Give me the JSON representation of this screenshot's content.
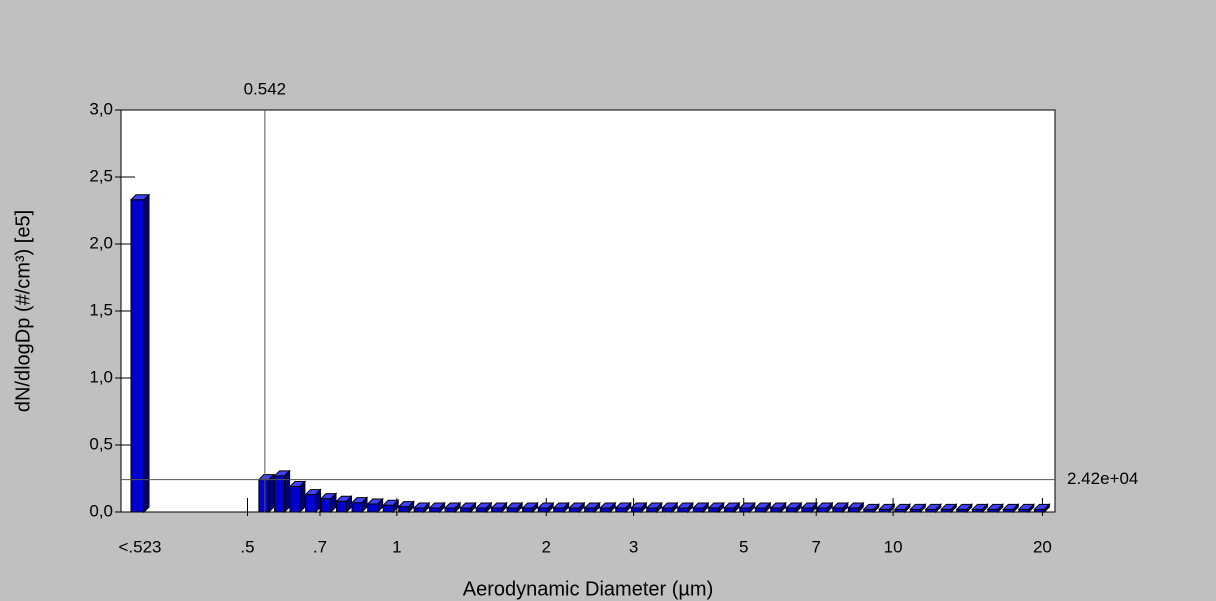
{
  "chart_data": {
    "type": "bar",
    "y_label": "dN/dlogDp (#/cm³) [e5]",
    "x_label": "Aerodynamic Diameter (µm)",
    "x_scale": "log",
    "color": "#0000d0",
    "xlim": [
      0.278,
      21.2
    ],
    "ylim": [
      0,
      3
    ],
    "yticks": [
      {
        "value": 0,
        "label": "0,0"
      },
      {
        "value": 0.5,
        "label": "0,5"
      },
      {
        "value": 1,
        "label": "1,0"
      },
      {
        "value": 1.5,
        "label": "1,5"
      },
      {
        "value": 2,
        "label": "2,0"
      },
      {
        "value": 2.5,
        "label": "2,5"
      },
      {
        "value": 3,
        "label": "3,0"
      }
    ],
    "xticks": [
      {
        "value": 0.5,
        "label": ".5"
      },
      {
        "value": 0.7,
        "label": ".7"
      },
      1,
      2,
      3,
      5,
      7,
      10,
      20
    ],
    "underflow": {
      "label": "<.523",
      "value": 2.33
    },
    "x": [
      0.542,
      0.583,
      0.626,
      0.673,
      0.723,
      0.777,
      0.835,
      0.898,
      0.965,
      1.037,
      1.114,
      1.197,
      1.286,
      1.382,
      1.486,
      1.596,
      1.715,
      1.843,
      1.981,
      2.129,
      2.288,
      2.458,
      2.642,
      2.839,
      3.051,
      3.278,
      3.523,
      3.786,
      4.068,
      4.371,
      4.698,
      5.048,
      5.425,
      5.829,
      6.264,
      6.732,
      7.234,
      7.774,
      8.354,
      8.977,
      9.647,
      10.37,
      11.14,
      11.97,
      12.86,
      13.82,
      14.86,
      15.96,
      17.15,
      18.43,
      19.81
    ],
    "values": [
      0.242,
      0.27,
      0.19,
      0.13,
      0.1,
      0.08,
      0.07,
      0.06,
      0.05,
      0.04,
      0.03,
      0.03,
      0.03,
      0.03,
      0.03,
      0.03,
      0.03,
      0.03,
      0.03,
      0.03,
      0.03,
      0.03,
      0.03,
      0.03,
      0.03,
      0.03,
      0.03,
      0.03,
      0.03,
      0.03,
      0.03,
      0.03,
      0.03,
      0.03,
      0.03,
      0.03,
      0.03,
      0.03,
      0.03,
      0.02,
      0.02,
      0.02,
      0.02,
      0.02,
      0.02,
      0.02,
      0.02,
      0.02,
      0.02,
      0.02,
      0.02
    ],
    "cursor": {
      "x": 0.542,
      "y": 0.242,
      "y_label": "2.42e+04"
    }
  }
}
